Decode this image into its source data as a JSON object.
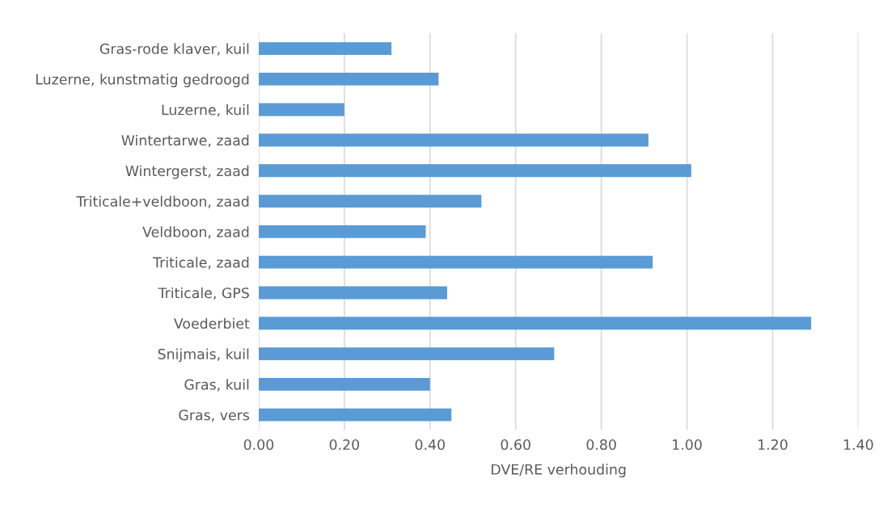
{
  "chart_data": {
    "type": "bar",
    "orientation": "horizontal",
    "xlabel": "DVE/RE verhouding",
    "categories": [
      "Gras-rode klaver, kuil",
      "Luzerne, kunstmatig gedroogd",
      "Luzerne, kuil",
      "Wintertarwe, zaad",
      "Wintergerst, zaad",
      "Triticale+veldboon, zaad",
      "Veldboon, zaad",
      "Triticale, zaad",
      "Triticale, GPS",
      "Voederbiet",
      "Snijmais, kuil",
      "Gras, kuil",
      "Gras, vers"
    ],
    "values": [
      0.31,
      0.42,
      0.2,
      0.91,
      1.01,
      0.52,
      0.39,
      0.92,
      0.44,
      1.29,
      0.69,
      0.4,
      0.45
    ],
    "color": "#5b9bd5",
    "xlim": [
      0,
      1.4
    ],
    "xticks": [
      {
        "value": 0,
        "label": "0.00"
      },
      {
        "value": 0.2,
        "label": "0.20"
      },
      {
        "value": 0.4,
        "label": "0.40"
      },
      {
        "value": 0.6,
        "label": "0.60"
      },
      {
        "value": 0.8,
        "label": "0.80"
      },
      {
        "value": 1.0,
        "label": "1.00"
      },
      {
        "value": 1.2,
        "label": "1.20"
      },
      {
        "value": 1.4,
        "label": "1.40"
      }
    ],
    "grid": "x"
  }
}
